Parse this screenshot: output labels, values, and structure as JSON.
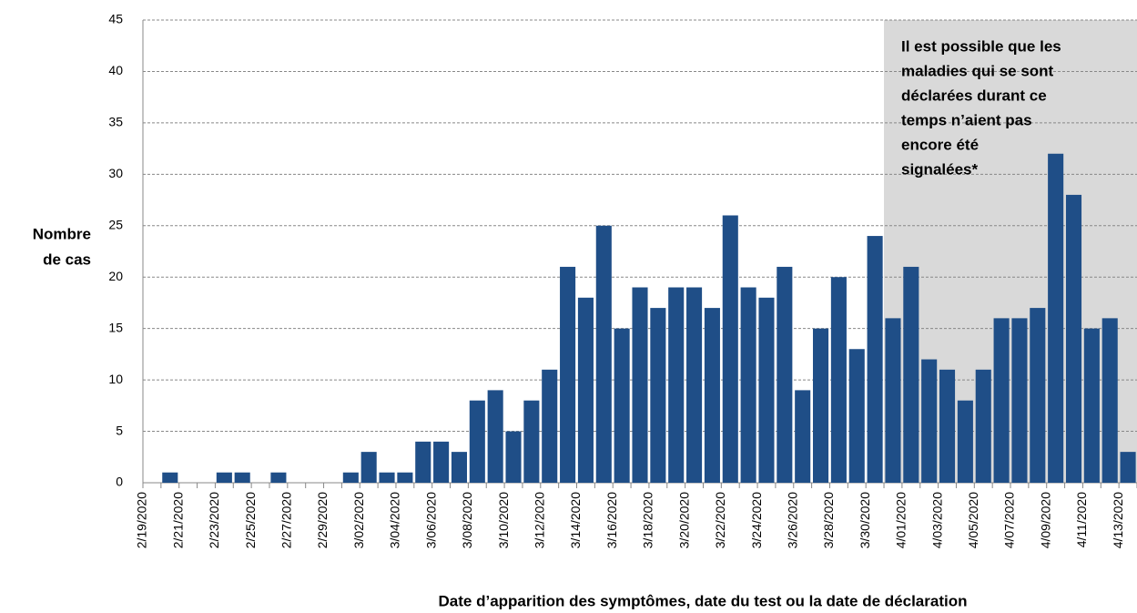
{
  "chart_data": {
    "type": "bar",
    "y_label": [
      "Nombre",
      "de cas"
    ],
    "x_label": "Date d’apparition des symptômes, date du test ou la date de déclaration",
    "annotation": [
      "Il est possible que les",
      "maladies qui se sont",
      "déclarées durant ce",
      "temps n’aient pas",
      "encore été",
      "signalées*"
    ],
    "categories": [
      "2/19/2020",
      null,
      "2/21/2020",
      null,
      "2/23/2020",
      null,
      "2/25/2020",
      null,
      "2/27/2020",
      null,
      "2/29/2020",
      null,
      "3/02/2020",
      null,
      "3/04/2020",
      null,
      "3/06/2020",
      null,
      "3/08/2020",
      null,
      "3/10/2020",
      null,
      "3/12/2020",
      null,
      "3/14/2020",
      null,
      "3/16/2020",
      null,
      "3/18/2020",
      null,
      "3/20/2020",
      null,
      "3/22/2020",
      null,
      "3/24/2020",
      null,
      "3/26/2020",
      null,
      "3/28/2020",
      null,
      "3/30/2020",
      null,
      "4/01/2020",
      null,
      "4/03/2020",
      null,
      "4/05/2020",
      null,
      "4/07/2020",
      null,
      "4/09/2020",
      null,
      "4/11/2020",
      null,
      "4/13/2020"
    ],
    "values": [
      0,
      1,
      0,
      0,
      1,
      1,
      0,
      1,
      0,
      0,
      0,
      1,
      3,
      1,
      1,
      4,
      4,
      3,
      8,
      9,
      5,
      8,
      11,
      21,
      18,
      25,
      15,
      19,
      17,
      19,
      19,
      17,
      26,
      19,
      18,
      21,
      9,
      15,
      20,
      13,
      24,
      16,
      21,
      12,
      11,
      8,
      11,
      16,
      16,
      17,
      32,
      28,
      15,
      16,
      3
    ],
    "color": "#1f4e87",
    "shade_color": "#d9d9d9",
    "ylim": [
      0,
      45
    ],
    "yticks": [
      0,
      5,
      10,
      15,
      20,
      25,
      30,
      35,
      40,
      45
    ],
    "grid": true
  }
}
